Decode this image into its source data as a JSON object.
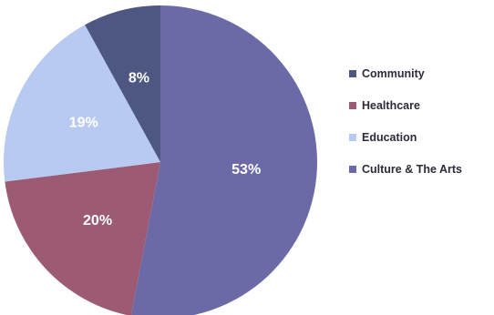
{
  "chart_data": {
    "type": "pie",
    "title": "",
    "start_angle_deg": 0,
    "direction": "clockwise",
    "legend_position": "right",
    "slices": [
      {
        "name": "Culture & The Arts",
        "value": 53,
        "label": "53%",
        "color": "#6b6aa6"
      },
      {
        "name": "Healthcare",
        "value": 20,
        "label": "20%",
        "color": "#9c5a74"
      },
      {
        "name": "Education",
        "value": 19,
        "label": "19%",
        "color": "#b8caf2"
      },
      {
        "name": "Community",
        "value": 8,
        "label": "8%",
        "color": "#4e5682"
      }
    ],
    "legend": [
      {
        "label": "Community",
        "color": "#4e5682"
      },
      {
        "label": "Healthcare",
        "color": "#9c5a74"
      },
      {
        "label": "Education",
        "color": "#b8caf2"
      },
      {
        "label": "Culture & The Arts",
        "color": "#6b6aa6"
      }
    ]
  }
}
